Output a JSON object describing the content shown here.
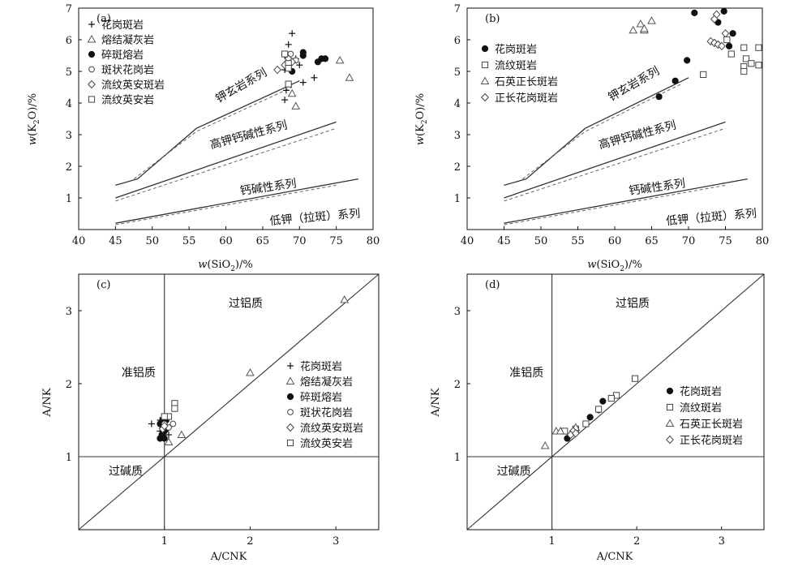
{
  "chart_data": [
    {
      "id": "a",
      "type": "scatter",
      "panel_label": "(a)",
      "xlabel_parts": [
        "w(SiO",
        "2",
        ")/%"
      ],
      "ylabel_parts": [
        "w(K",
        "2",
        "O)/%"
      ],
      "xlim": [
        40,
        80
      ],
      "ylim": [
        0,
        7
      ],
      "xticks": [
        40,
        45,
        50,
        55,
        60,
        65,
        70,
        75,
        80
      ],
      "yticks": [
        1,
        2,
        3,
        4,
        5,
        6,
        7
      ],
      "legend_position": "top-left",
      "boundary_lines": [
        {
          "solid": [
            [
              45,
              1.4
            ],
            [
              48,
              1.6
            ],
            [
              56,
              3.2
            ],
            [
              70,
              4.7
            ]
          ],
          "dashed": [
            [
              47.5,
              1.6
            ],
            [
              56,
              3.1
            ],
            [
              69,
              4.5
            ]
          ]
        },
        {
          "solid": [
            [
              45,
              1.0
            ],
            [
              75,
              3.4
            ]
          ],
          "dashed": [
            [
              45,
              0.9
            ],
            [
              75,
              3.2
            ]
          ]
        },
        {
          "solid": [
            [
              45,
              0.2
            ],
            [
              78,
              1.6
            ]
          ],
          "dashed": [
            [
              45,
              0.15
            ],
            [
              75,
              1.4
            ]
          ]
        }
      ],
      "region_labels": [
        {
          "text": "钾玄岩系列",
          "x": 59,
          "y": 4.0,
          "rotate": -30
        },
        {
          "text": "高钾钙碱性系列",
          "x": 58,
          "y": 2.55,
          "rotate": -15
        },
        {
          "text": "钙碱性系列",
          "x": 62,
          "y": 1.1,
          "rotate": -8
        },
        {
          "text": "低钾（拉斑）系列",
          "x": 66,
          "y": 0.15,
          "rotate": -5
        }
      ],
      "series": [
        {
          "name": "花岗斑岩",
          "marker": "plus",
          "points": [
            [
              69,
              6.2
            ],
            [
              68.5,
              5.85
            ],
            [
              68,
              5.5
            ],
            [
              69.5,
              5.4
            ],
            [
              70,
              5.2
            ],
            [
              68,
              5.05
            ],
            [
              70.5,
              4.65
            ],
            [
              72,
              4.8
            ],
            [
              68.2,
              4.4
            ],
            [
              68,
              4.1
            ]
          ]
        },
        {
          "name": "熔结凝灰岩",
          "marker": "triangle",
          "points": [
            [
              75.5,
              5.35
            ],
            [
              76.8,
              4.8
            ],
            [
              69.5,
              3.9
            ],
            [
              69,
              4.3
            ]
          ]
        },
        {
          "name": "碎斑熔岩",
          "marker": "dot",
          "points": [
            [
              70.5,
              5.6
            ],
            [
              70.5,
              5.5
            ],
            [
              72.5,
              5.3
            ],
            [
              73,
              5.4
            ],
            [
              73.5,
              5.4
            ],
            [
              69,
              5.0
            ]
          ]
        },
        {
          "name": "斑状花岗岩",
          "marker": "circle",
          "points": [
            [
              68.8,
              5.55
            ],
            [
              69.5,
              5.35
            ]
          ]
        },
        {
          "name": "流纹英安斑岩",
          "marker": "diamond",
          "points": [
            [
              67,
              5.05
            ],
            [
              68.5,
              5.4
            ],
            [
              69,
              5.3
            ],
            [
              68,
              5.2
            ]
          ]
        },
        {
          "name": "流纹英安岩",
          "marker": "square",
          "points": [
            [
              68,
              5.55
            ],
            [
              68.5,
              5.25
            ],
            [
              68.5,
              4.6
            ],
            [
              68.5,
              5.1
            ]
          ]
        }
      ]
    },
    {
      "id": "b",
      "type": "scatter",
      "panel_label": "(b)",
      "xlabel_parts": [
        "w(SiO",
        "2",
        ")/%"
      ],
      "ylabel_parts": [
        "w(K",
        "2",
        "O)/%"
      ],
      "xlim": [
        40,
        80
      ],
      "ylim": [
        0,
        7
      ],
      "xticks": [
        40,
        45,
        50,
        55,
        60,
        65,
        70,
        75,
        80
      ],
      "yticks": [
        1,
        2,
        3,
        4,
        5,
        6,
        7
      ],
      "legend_position": "top-left",
      "boundary_lines": [
        {
          "solid": [
            [
              45,
              1.4
            ],
            [
              48,
              1.6
            ],
            [
              56,
              3.2
            ],
            [
              70,
              4.8
            ]
          ],
          "dashed": [
            [
              47.5,
              1.6
            ],
            [
              56,
              3.1
            ],
            [
              69,
              4.6
            ]
          ]
        },
        {
          "solid": [
            [
              45,
              1.0
            ],
            [
              75,
              3.4
            ]
          ],
          "dashed": [
            [
              45,
              0.9
            ],
            [
              75,
              3.2
            ]
          ]
        },
        {
          "solid": [
            [
              45,
              0.2
            ],
            [
              78,
              1.6
            ]
          ],
          "dashed": [
            [
              45,
              0.15
            ],
            [
              75,
              1.4
            ]
          ]
        }
      ],
      "region_labels": [
        {
          "text": "钾玄岩系列",
          "x": 59.5,
          "y": 4.05,
          "rotate": -30
        },
        {
          "text": "高钾钙碱性系列",
          "x": 58,
          "y": 2.55,
          "rotate": -15
        },
        {
          "text": "钙碱性系列",
          "x": 62,
          "y": 1.1,
          "rotate": -8
        },
        {
          "text": "低钾（拉斑）系列",
          "x": 67,
          "y": 0.15,
          "rotate": -5
        }
      ],
      "series": [
        {
          "name": "花岗斑岩",
          "marker": "dot",
          "points": [
            [
              70.8,
              6.85
            ],
            [
              74.8,
              6.9
            ],
            [
              74,
              6.55
            ],
            [
              76,
              6.2
            ],
            [
              75.5,
              5.8
            ],
            [
              69.8,
              5.35
            ],
            [
              68.2,
              4.7
            ],
            [
              66,
              4.2
            ]
          ]
        },
        {
          "name": "流纹斑岩",
          "marker": "square",
          "points": [
            [
              75.2,
              6.0
            ],
            [
              75.8,
              5.55
            ],
            [
              77.5,
              5.75
            ],
            [
              79.5,
              5.75
            ],
            [
              77.8,
              5.4
            ],
            [
              78.5,
              5.25
            ],
            [
              79.5,
              5.2
            ],
            [
              77.5,
              5.15
            ],
            [
              77.5,
              5.0
            ],
            [
              72,
              4.9
            ]
          ]
        },
        {
          "name": "石英正长斑岩",
          "marker": "triangle",
          "points": [
            [
              62.5,
              6.3
            ],
            [
              63.5,
              6.5
            ],
            [
              64,
              6.3
            ],
            [
              64,
              6.35
            ],
            [
              65,
              6.6
            ]
          ]
        },
        {
          "name": "正长花岗斑岩",
          "marker": "diamond",
          "points": [
            [
              73.8,
              6.8
            ],
            [
              73.5,
              6.65
            ],
            [
              75,
              6.2
            ],
            [
              73,
              5.95
            ],
            [
              73.5,
              5.9
            ],
            [
              74,
              5.85
            ],
            [
              74.5,
              5.8
            ]
          ]
        }
      ]
    },
    {
      "id": "c",
      "type": "scatter",
      "panel_label": "(c)",
      "xlabel": "A/CNK",
      "ylabel": "A/NK",
      "xlim": [
        0,
        3.5
      ],
      "ylim": [
        0,
        3.5
      ],
      "xticks": [
        1,
        2,
        3
      ],
      "yticks": [
        1,
        2,
        3
      ],
      "legend_position": "right-middle",
      "reference_lines": {
        "vertical_x": 1,
        "horizontal_y": 1,
        "diagonal": true
      },
      "region_labels": [
        {
          "text": "过铝质",
          "x": 1.75,
          "y": 3.05
        },
        {
          "text": "准铝质",
          "x": 0.5,
          "y": 2.1
        },
        {
          "text": "过碱质",
          "x": 0.35,
          "y": 0.75
        }
      ],
      "series": [
        {
          "name": "花岗斑岩",
          "marker": "plus",
          "points": [
            [
              0.85,
              1.45
            ],
            [
              0.95,
              1.5
            ],
            [
              1.0,
              1.3
            ],
            [
              1.05,
              1.3
            ],
            [
              0.95,
              1.35
            ]
          ]
        },
        {
          "name": "熔结凝灰岩",
          "marker": "triangle",
          "points": [
            [
              3.1,
              3.15
            ],
            [
              2.0,
              2.15
            ],
            [
              1.2,
              1.3
            ],
            [
              1.05,
              1.2
            ]
          ]
        },
        {
          "name": "碎斑熔岩",
          "marker": "dot",
          "points": [
            [
              0.95,
              1.45
            ],
            [
              1.0,
              1.42
            ],
            [
              0.98,
              1.4
            ],
            [
              1.02,
              1.38
            ],
            [
              1.0,
              1.35
            ],
            [
              0.97,
              1.3
            ],
            [
              0.95,
              1.25
            ],
            [
              1.0,
              1.25
            ],
            [
              1.02,
              1.5
            ],
            [
              0.98,
              1.5
            ]
          ]
        },
        {
          "name": "斑状花岗岩",
          "marker": "circle",
          "points": [
            [
              1.1,
              1.45
            ],
            [
              1.05,
              1.4
            ],
            [
              1.0,
              1.45
            ]
          ]
        },
        {
          "name": "流纹英安斑岩",
          "marker": "diamond",
          "points": [
            [
              0.98,
              1.38
            ],
            [
              1.0,
              1.42
            ]
          ]
        },
        {
          "name": "流纹英安岩",
          "marker": "square",
          "points": [
            [
              1.12,
              1.73
            ],
            [
              1.12,
              1.66
            ],
            [
              1.05,
              1.55
            ],
            [
              1.0,
              1.55
            ]
          ]
        }
      ]
    },
    {
      "id": "d",
      "type": "scatter",
      "panel_label": "(d)",
      "xlabel": "A/CNK",
      "ylabel": "A/NK",
      "xlim": [
        0,
        3.5
      ],
      "ylim": [
        0,
        3.5
      ],
      "xticks": [
        1,
        2,
        3
      ],
      "yticks": [
        1,
        2,
        3
      ],
      "legend_position": "right-middle",
      "reference_lines": {
        "vertical_x": 1,
        "horizontal_y": 1,
        "diagonal": true
      },
      "region_labels": [
        {
          "text": "过铝质",
          "x": 1.75,
          "y": 3.05
        },
        {
          "text": "准铝质",
          "x": 0.5,
          "y": 2.1
        },
        {
          "text": "过碱质",
          "x": 0.35,
          "y": 0.75
        }
      ],
      "series": [
        {
          "name": "花岗斑岩",
          "marker": "dot",
          "points": [
            [
              1.6,
              1.76
            ],
            [
              1.55,
              1.64
            ],
            [
              1.45,
              1.54
            ],
            [
              1.18,
              1.25
            ]
          ]
        },
        {
          "name": "流纹斑岩",
          "marker": "square",
          "points": [
            [
              1.98,
              2.07
            ],
            [
              1.76,
              1.84
            ],
            [
              1.7,
              1.8
            ],
            [
              1.55,
              1.65
            ],
            [
              1.4,
              1.45
            ],
            [
              1.28,
              1.38
            ],
            [
              1.15,
              1.35
            ]
          ]
        },
        {
          "name": "石英正长斑岩",
          "marker": "triangle",
          "points": [
            [
              0.92,
              1.15
            ],
            [
              1.05,
              1.35
            ],
            [
              1.1,
              1.35
            ],
            [
              1.28,
              1.4
            ]
          ]
        },
        {
          "name": "正长花岗斑岩",
          "marker": "diamond",
          "points": [
            [
              1.25,
              1.35
            ],
            [
              1.22,
              1.3
            ],
            [
              1.28,
              1.32
            ]
          ]
        }
      ]
    }
  ]
}
